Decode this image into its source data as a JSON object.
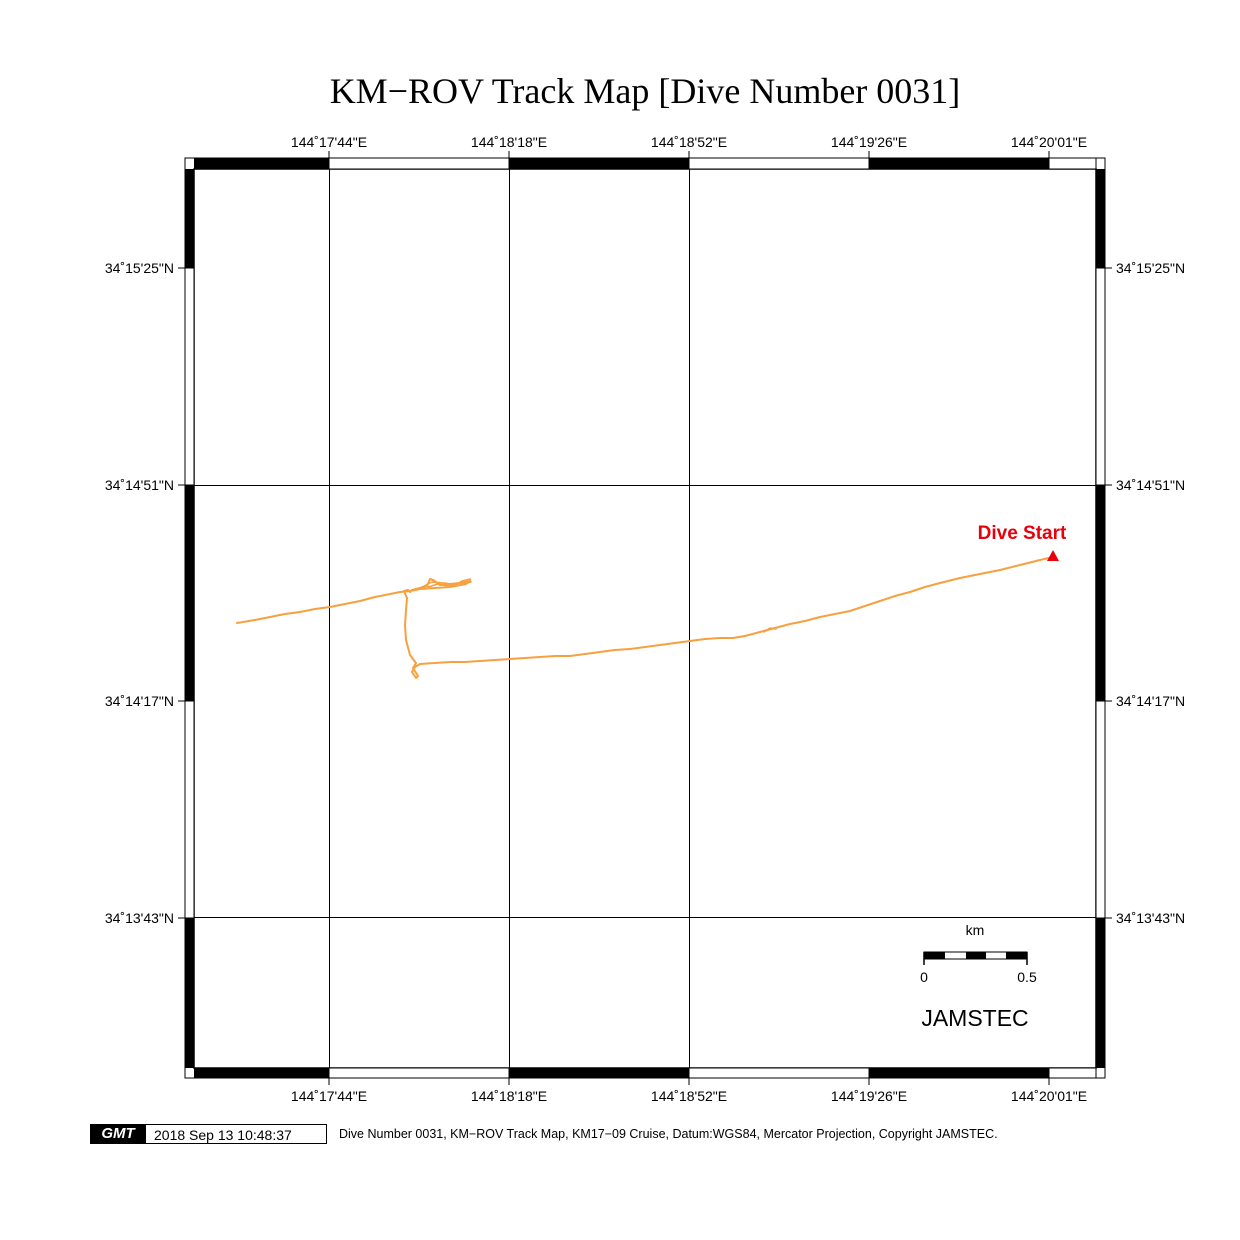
{
  "title": "KM−ROV Track Map [Dive Number 0031]",
  "longitude_labels_top": [
    "144˚17'44\"E",
    "144˚18'18\"E",
    "144˚18'52\"E",
    "144˚19'26\"E",
    "144˚20'01\"E"
  ],
  "longitude_labels_bottom": [
    "144˚17'44\"E",
    "144˚18'18\"E",
    "144˚18'52\"E",
    "144˚19'26\"E",
    "144˚20'01\"E"
  ],
  "latitude_labels_left": [
    "34˚15'25\"N",
    "34˚14'51\"N",
    "34˚14'17\"N",
    "34˚13'43\"N"
  ],
  "latitude_labels_right": [
    "34˚15'25\"N",
    "34˚14'51\"N",
    "34˚14'17\"N",
    "34˚13'43\"N"
  ],
  "dive_start_label": "Dive Start",
  "scale_bar": {
    "unit": "km",
    "start_label": "0",
    "end_label": "0.5"
  },
  "organization": "JAMSTEC",
  "footer": {
    "logo": "GMT",
    "timestamp": "2018 Sep 13 10:48:37",
    "caption": "Dive Number 0031, KM−ROV Track Map, KM17−09 Cruise, Datum:WGS84, Mercator Projection, Copyright JAMSTEC."
  },
  "colors": {
    "track": "#f7a040",
    "dive_start": "#e8000b",
    "frame": "#000000",
    "grid": "#000000"
  }
}
